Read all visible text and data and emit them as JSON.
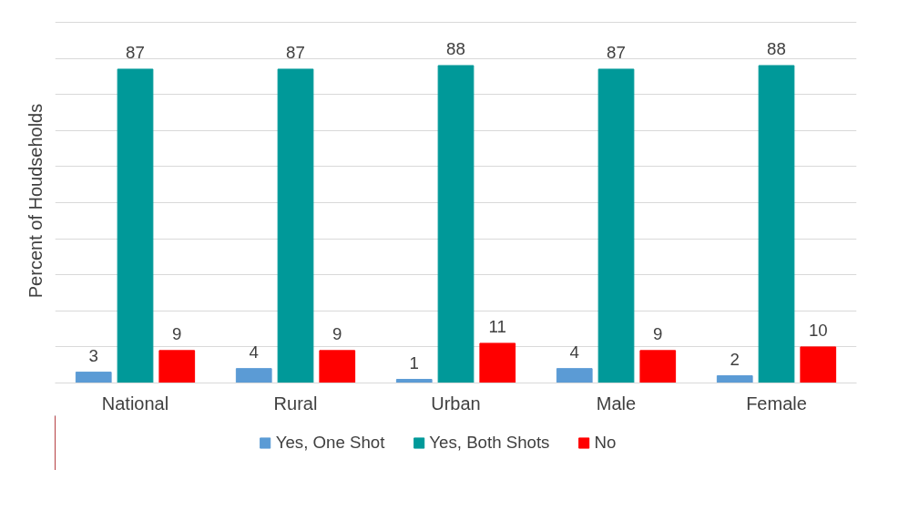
{
  "chart_data": {
    "type": "bar",
    "ylabel": "Percent of Houdseholds",
    "categories": [
      "National",
      "Rural",
      "Urban",
      "Male",
      "Female"
    ],
    "series": [
      {
        "name": "Yes, One Shot",
        "color": "#5b9bd5",
        "values": [
          3,
          4,
          1,
          4,
          2
        ]
      },
      {
        "name": "Yes, Both Shots",
        "color": "#009999",
        "values": [
          87,
          87,
          88,
          87,
          88
        ]
      },
      {
        "name": "No",
        "color": "#ff0000",
        "values": [
          9,
          9,
          11,
          9,
          10
        ]
      }
    ],
    "yticks": [
      {
        "value": 0,
        "label": null
      },
      {
        "value": 10,
        "label": null
      },
      {
        "value": 20,
        "label": null
      },
      {
        "value": 30,
        "label": null
      },
      {
        "value": 40,
        "label": null
      },
      {
        "value": 50,
        "label": null
      },
      {
        "value": 60,
        "label": null
      },
      {
        "value": 70,
        "label": null
      },
      {
        "value": 80,
        "label": null
      },
      {
        "value": 90,
        "label": null
      },
      {
        "value": 100,
        "label": null
      }
    ],
    "tick_labels": "x",
    "grid": "y",
    "legend": "bottom",
    "data_labels": true
  }
}
